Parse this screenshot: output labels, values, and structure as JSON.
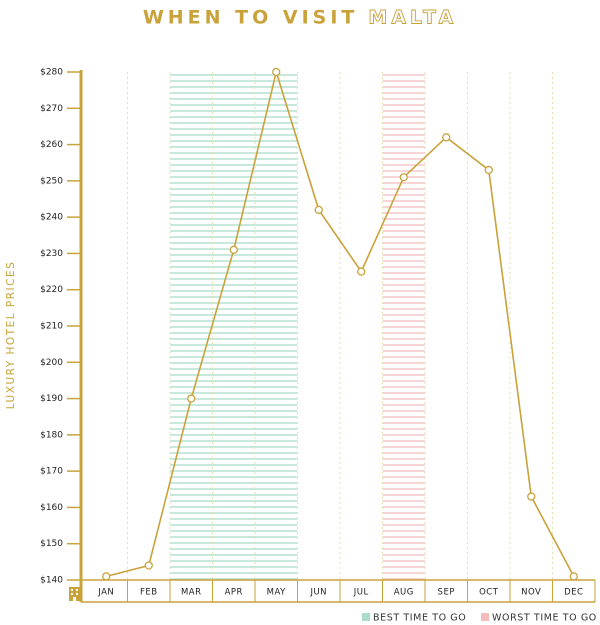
{
  "chart_data": {
    "type": "line",
    "title": "WHEN TO VISIT",
    "title_highlight": "MALTA",
    "y_label": "LUXURY HOTEL PRICES",
    "categories": [
      "JAN",
      "FEB",
      "MAR",
      "APR",
      "MAY",
      "JUN",
      "JUL",
      "AUG",
      "SEP",
      "OCT",
      "NOV",
      "DEC"
    ],
    "values": [
      141,
      144,
      190,
      231,
      280,
      242,
      225,
      251,
      262,
      253,
      163,
      141
    ],
    "color": "#c9a23a",
    "ylim": [
      140,
      280
    ],
    "yticks": [
      {
        "value": 140,
        "label": "$140"
      },
      {
        "value": 150,
        "label": "$150"
      },
      {
        "value": 160,
        "label": "$160"
      },
      {
        "value": 170,
        "label": "$170"
      },
      {
        "value": 180,
        "label": "$180"
      },
      {
        "value": 190,
        "label": "$190"
      },
      {
        "value": 200,
        "label": "$200"
      },
      {
        "value": 210,
        "label": "$210"
      },
      {
        "value": 220,
        "label": "$220"
      },
      {
        "value": 230,
        "label": "$230"
      },
      {
        "value": 240,
        "label": "$240"
      },
      {
        "value": 250,
        "label": "$250"
      },
      {
        "value": 260,
        "label": "$260"
      },
      {
        "value": 270,
        "label": "$270"
      },
      {
        "value": 280,
        "label": "$280"
      }
    ],
    "highlights": [
      {
        "name": "BEST TIME TO GO",
        "color": "#a9dcc9",
        "categories": [
          "MAR",
          "APR",
          "MAY"
        ]
      },
      {
        "name": "WORST TIME TO GO",
        "color": "#f5bcbc",
        "categories": [
          "AUG"
        ]
      }
    ]
  }
}
